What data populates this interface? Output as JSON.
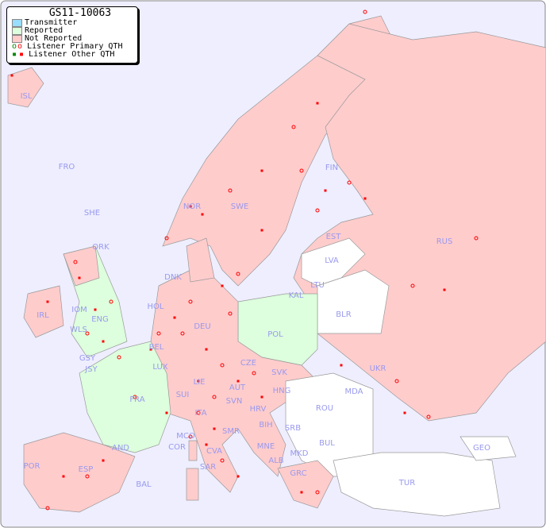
{
  "legend": {
    "title": "GS11-10063",
    "items": [
      {
        "label": "Transmitter",
        "color": "#99ddff"
      },
      {
        "label": "Reported",
        "color": "#ddffdd"
      },
      {
        "label": "Not Reported",
        "color": "#ffcccc"
      },
      {
        "label": "Listener Primary QTH",
        "symbol": "circle"
      },
      {
        "label": "Listener Other QTH",
        "symbol": "square"
      }
    ]
  },
  "colors": {
    "sea": "#eeeeff",
    "not_reported": "#ffcccc",
    "reported": "#ddffdd",
    "no_data": "#ffffff",
    "listener": "#ff0000",
    "label": "#9999ee"
  },
  "countries": {
    "not_reported": [
      "ISL",
      "FRO",
      "SHE",
      "ORK",
      "NOR",
      "SWE",
      "FIN",
      "EST",
      "LVA",
      "KAL",
      "RUS",
      "UKR",
      "GRC",
      "MKD",
      "ALB",
      "MNE",
      "BIH",
      "HRV",
      "SVN",
      "HNG",
      "SVK",
      "CZE",
      "AUT",
      "DEU",
      "DNK",
      "HOL",
      "BEL",
      "LUX",
      "SUI",
      "LIE",
      "ITA",
      "SMR",
      "CVA",
      "MCO",
      "COR",
      "SAR",
      "AND",
      "ESP",
      "POR",
      "BAL",
      "GSY",
      "JSY",
      "IRL",
      "IOM",
      "WLS",
      "SRB"
    ],
    "reported": [
      "POL",
      "FRA",
      "ENG"
    ],
    "no_data": [
      "LTU",
      "BLR",
      "MDA",
      "ROU",
      "BUL",
      "TUR",
      "GEO"
    ]
  }
}
